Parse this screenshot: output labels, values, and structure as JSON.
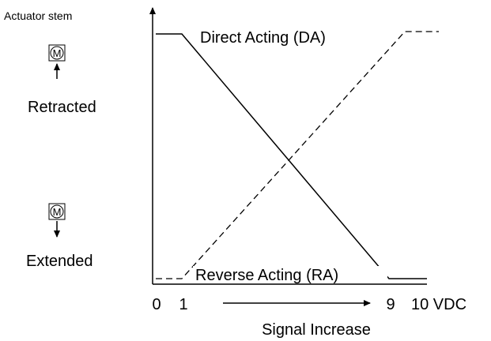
{
  "y_axis_title": "Actuator stem",
  "positions": {
    "top": "Retracted",
    "bottom": "Extended"
  },
  "motor_label": "M",
  "curves": {
    "direct": "Direct Acting (DA)",
    "reverse": "Reverse Acting (RA)"
  },
  "x_ticks": [
    "0",
    "1",
    "9",
    "10 VDC"
  ],
  "x_axis_title": "Signal Increase"
}
